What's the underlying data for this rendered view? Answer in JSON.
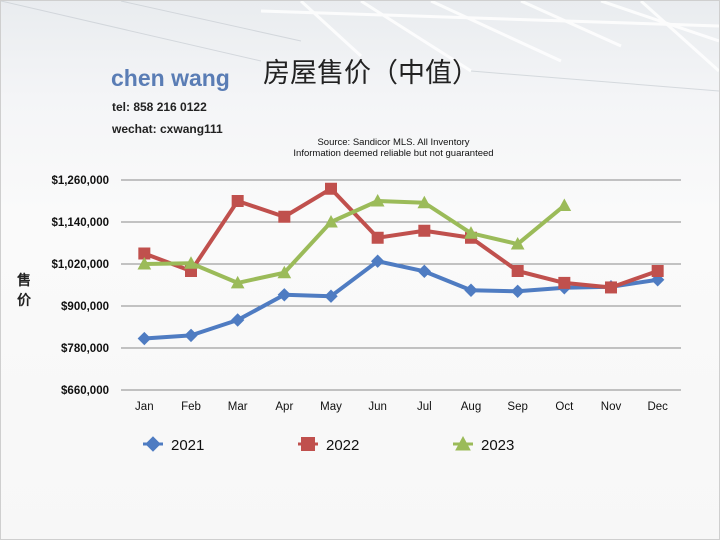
{
  "author": {
    "name": "chen wang",
    "tel": "tel: 858 216 0122",
    "wechat": "wechat: cxwang111"
  },
  "source": {
    "line1": "Source: Sandicor MLS. All Inventory",
    "line2": "Information deemed reliable but not guaranteed"
  },
  "colors": {
    "series_2021": "#4f7cc2",
    "series_2022": "#c0504d",
    "series_2023": "#9bbb59",
    "grid": "#8a8a8a"
  },
  "chart_data": {
    "type": "line",
    "title": "房屋售价（中值）",
    "xlabel": "",
    "ylabel": "售价",
    "ylim": [
      660000,
      1260000
    ],
    "yticks": [
      660000,
      780000,
      900000,
      1020000,
      1140000,
      1260000
    ],
    "ytick_labels": [
      "$660,000",
      "$780,000",
      "$900,000",
      "$1,020,000",
      "$1,140,000",
      "$1,260,000"
    ],
    "categories": [
      "Jan",
      "Feb",
      "Mar",
      "Apr",
      "May",
      "Jun",
      "Jul",
      "Aug",
      "Sep",
      "Oct",
      "Nov",
      "Dec"
    ],
    "grid": true,
    "legend_position": "bottom",
    "series": [
      {
        "name": "2021",
        "marker": "diamond",
        "values": [
          807000,
          816000,
          860000,
          932000,
          928000,
          1028000,
          999000,
          945000,
          942000,
          952000,
          955000,
          975000
        ]
      },
      {
        "name": "2022",
        "marker": "square",
        "values": [
          1050000,
          1000000,
          1200000,
          1155000,
          1235000,
          1095000,
          1115000,
          1095000,
          1000000,
          966000,
          953000,
          1000000
        ]
      },
      {
        "name": "2023",
        "marker": "triangle",
        "values": [
          1020000,
          1022000,
          966000,
          995000,
          1140000,
          1200000,
          1195000,
          1108000,
          1077000,
          1187000,
          null,
          null
        ]
      }
    ]
  }
}
